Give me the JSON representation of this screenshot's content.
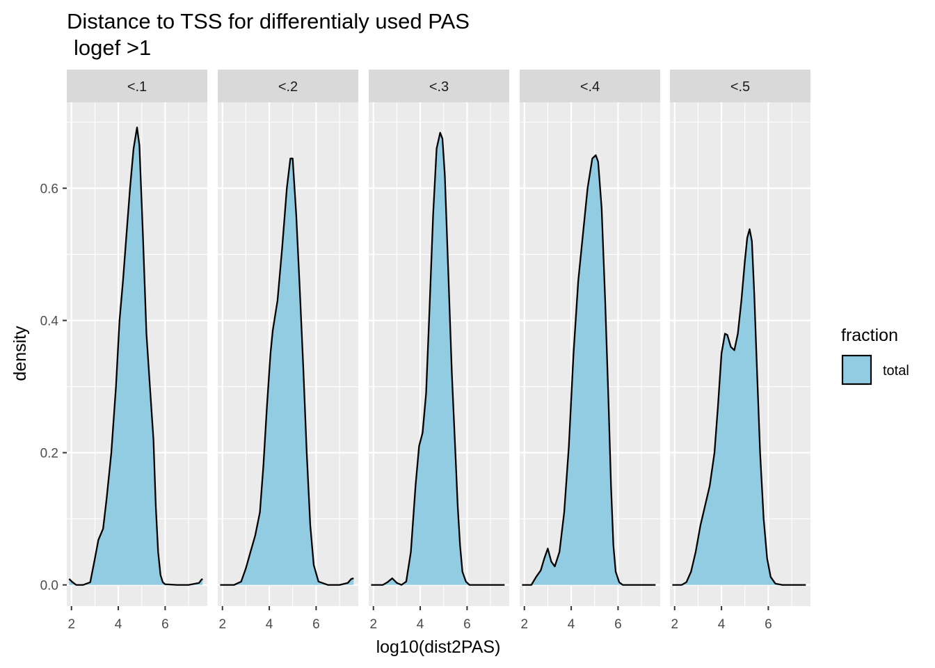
{
  "chart_data": {
    "type": "area",
    "subtype": "faceted-density",
    "title": "Distance to TSS for differentialy used PAS",
    "subtitle": "logef >1",
    "xlabel": "log10(dist2PAS)",
    "ylabel": "density",
    "xlim": [
      1.8,
      7.8
    ],
    "ylim": [
      -0.032,
      0.73
    ],
    "x_ticks": [
      2,
      4,
      6
    ],
    "y_ticks": [
      0.0,
      0.2,
      0.4,
      0.6
    ],
    "y_tick_labels": [
      "0.0",
      "0.2",
      "0.4",
      "0.6"
    ],
    "grid": true,
    "fill_color": "#92cce2",
    "line_color": "#000000",
    "panel_bg": "#ebebeb",
    "strip_bg": "#d9d9d9",
    "legend": {
      "title": "fraction",
      "position": "right",
      "entries": [
        {
          "label": "total",
          "color": "#92cce2"
        }
      ]
    },
    "facets": [
      {
        "label": "<.1",
        "x": [
          1.9,
          2.05,
          2.2,
          2.5,
          2.8,
          3.0,
          3.15,
          3.35,
          3.5,
          3.7,
          3.9,
          4.05,
          4.2,
          4.35,
          4.5,
          4.65,
          4.8,
          4.9,
          5.05,
          5.2,
          5.35,
          5.5,
          5.6,
          5.7,
          5.8,
          5.9,
          6.0,
          6.5,
          7.0,
          7.45,
          7.55,
          7.6
        ],
        "y": [
          0.009,
          0.004,
          0.0,
          0.0,
          0.004,
          0.04,
          0.068,
          0.085,
          0.13,
          0.2,
          0.3,
          0.4,
          0.46,
          0.53,
          0.6,
          0.66,
          0.692,
          0.665,
          0.53,
          0.38,
          0.3,
          0.22,
          0.12,
          0.05,
          0.015,
          0.004,
          0.001,
          0.0,
          0.0,
          0.003,
          0.008,
          0.009
        ]
      },
      {
        "label": "<.2",
        "x": [
          1.9,
          2.5,
          2.8,
          3.0,
          3.2,
          3.4,
          3.6,
          3.75,
          3.9,
          4.05,
          4.15,
          4.35,
          4.55,
          4.75,
          4.9,
          5.0,
          5.15,
          5.3,
          5.45,
          5.6,
          5.75,
          5.9,
          6.1,
          6.5,
          7.0,
          7.35,
          7.5,
          7.6
        ],
        "y": [
          0.0,
          0.0,
          0.005,
          0.025,
          0.05,
          0.075,
          0.11,
          0.18,
          0.27,
          0.35,
          0.385,
          0.43,
          0.51,
          0.6,
          0.645,
          0.645,
          0.56,
          0.45,
          0.33,
          0.2,
          0.09,
          0.03,
          0.005,
          0.0,
          0.0,
          0.003,
          0.009,
          0.01
        ]
      },
      {
        "label": "<.3",
        "x": [
          1.9,
          2.4,
          2.6,
          2.8,
          3.0,
          3.2,
          3.4,
          3.6,
          3.8,
          3.95,
          4.1,
          4.25,
          4.4,
          4.55,
          4.7,
          4.85,
          4.95,
          5.05,
          5.2,
          5.35,
          5.5,
          5.6,
          5.7,
          5.8,
          5.95,
          6.1,
          6.5,
          7.0,
          7.6
        ],
        "y": [
          0.0,
          0.0,
          0.004,
          0.01,
          0.003,
          0.0,
          0.005,
          0.05,
          0.15,
          0.21,
          0.23,
          0.29,
          0.42,
          0.56,
          0.66,
          0.684,
          0.675,
          0.62,
          0.47,
          0.32,
          0.2,
          0.12,
          0.06,
          0.02,
          0.005,
          0.0,
          0.0,
          0.0,
          0.0
        ]
      },
      {
        "label": "<.4",
        "x": [
          1.9,
          2.3,
          2.5,
          2.7,
          2.85,
          3.0,
          3.15,
          3.3,
          3.5,
          3.7,
          3.9,
          4.1,
          4.3,
          4.5,
          4.7,
          4.9,
          5.05,
          5.15,
          5.3,
          5.45,
          5.6,
          5.7,
          5.8,
          5.9,
          6.05,
          6.2,
          6.5,
          7.0,
          7.6
        ],
        "y": [
          0.0,
          0.0,
          0.012,
          0.022,
          0.04,
          0.055,
          0.035,
          0.028,
          0.05,
          0.11,
          0.21,
          0.35,
          0.46,
          0.53,
          0.6,
          0.645,
          0.65,
          0.64,
          0.57,
          0.43,
          0.27,
          0.15,
          0.06,
          0.02,
          0.004,
          0.0,
          0.0,
          0.0,
          0.0
        ]
      },
      {
        "label": "<.5",
        "x": [
          1.9,
          2.3,
          2.5,
          2.7,
          2.9,
          3.1,
          3.3,
          3.5,
          3.7,
          3.85,
          4.0,
          4.15,
          4.25,
          4.4,
          4.55,
          4.7,
          4.85,
          5.0,
          5.1,
          5.2,
          5.3,
          5.4,
          5.5,
          5.65,
          5.8,
          5.95,
          6.1,
          6.3,
          6.6,
          7.0,
          7.6
        ],
        "y": [
          0.0,
          0.0,
          0.004,
          0.02,
          0.05,
          0.09,
          0.12,
          0.15,
          0.2,
          0.27,
          0.35,
          0.38,
          0.378,
          0.36,
          0.355,
          0.38,
          0.43,
          0.49,
          0.525,
          0.538,
          0.52,
          0.44,
          0.34,
          0.2,
          0.1,
          0.04,
          0.012,
          0.002,
          0.0,
          0.0,
          0.0
        ]
      }
    ]
  }
}
